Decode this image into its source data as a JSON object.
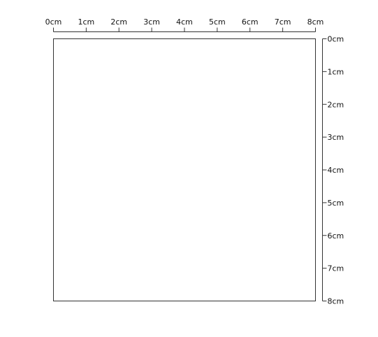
{
  "ruler": {
    "unit": "cm",
    "top_labels": [
      "0cm",
      "1cm",
      "2cm",
      "3cm",
      "4cm",
      "5cm",
      "6cm",
      "7cm",
      "8cm"
    ],
    "right_labels": [
      "0cm",
      "1cm",
      "2cm",
      "3cm",
      "4cm",
      "5cm",
      "6cm",
      "7cm",
      "8cm"
    ]
  },
  "colors": {
    "line": "#333333",
    "canvas_fill": "#ffffff",
    "background": "#ffffff"
  }
}
